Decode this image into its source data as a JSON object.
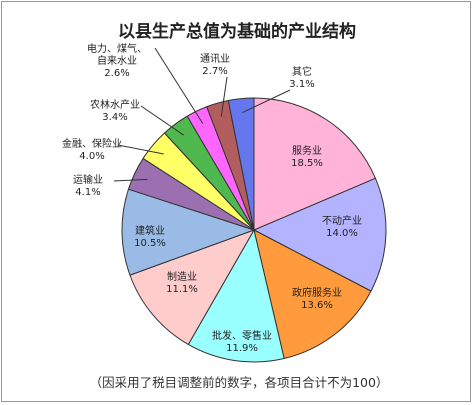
{
  "chart_data": {
    "type": "pie",
    "title": "以县生产总值为基础的产业结构",
    "note": "（因采用了税目调整前的数字，各项目合计不为100）",
    "unit": "%",
    "start": "12 o'clock, clockwise",
    "slices": [
      {
        "name": "服务业",
        "value": 18.5,
        "color": "#ffb3d9",
        "label_lines": [
          "服务业"
        ],
        "value_text": "18.5%"
      },
      {
        "name": "不动产业",
        "value": 14.0,
        "color": "#b3b3ff",
        "label_lines": [
          "不动产业"
        ],
        "value_text": "14.0%"
      },
      {
        "name": "政府服务业",
        "value": 13.6,
        "color": "#ff9b3c",
        "label_lines": [
          "政府服务业"
        ],
        "value_text": "13.6%"
      },
      {
        "name": "批发、零售业",
        "value": 11.9,
        "color": "#99ffff",
        "label_lines": [
          "批发、零售业"
        ],
        "value_text": "11.9%"
      },
      {
        "name": "制造业",
        "value": 11.1,
        "color": "#ffcccc",
        "label_lines": [
          "制造业"
        ],
        "value_text": "11.1%"
      },
      {
        "name": "建筑业",
        "value": 10.5,
        "color": "#99bbe6",
        "label_lines": [
          "建筑业"
        ],
        "value_text": "10.5%"
      },
      {
        "name": "运输业",
        "value": 4.1,
        "color": "#9b6fb0",
        "label_lines": [
          "运输业"
        ],
        "value_text": "4.1%"
      },
      {
        "name": "金融、保险业",
        "value": 4.0,
        "color": "#ffff66",
        "label_lines": [
          "金融、保险业"
        ],
        "value_text": "4.0%"
      },
      {
        "name": "农林水产业",
        "value": 3.4,
        "color": "#4fb84f",
        "label_lines": [
          "农林水产业"
        ],
        "value_text": "3.4%"
      },
      {
        "name": "电力、煤气、自来水业",
        "value": 2.6,
        "color": "#ff66ff",
        "label_lines": [
          "电力、煤气、",
          "自来水业"
        ],
        "value_text": "2.6%"
      },
      {
        "name": "通讯业",
        "value": 2.7,
        "color": "#b35e5e",
        "label_lines": [
          "通讯业"
        ],
        "value_text": "2.7%"
      },
      {
        "name": "其它",
        "value": 3.1,
        "color": "#6677ee",
        "label_lines": [
          "其它"
        ],
        "value_text": "3.1%"
      }
    ]
  }
}
